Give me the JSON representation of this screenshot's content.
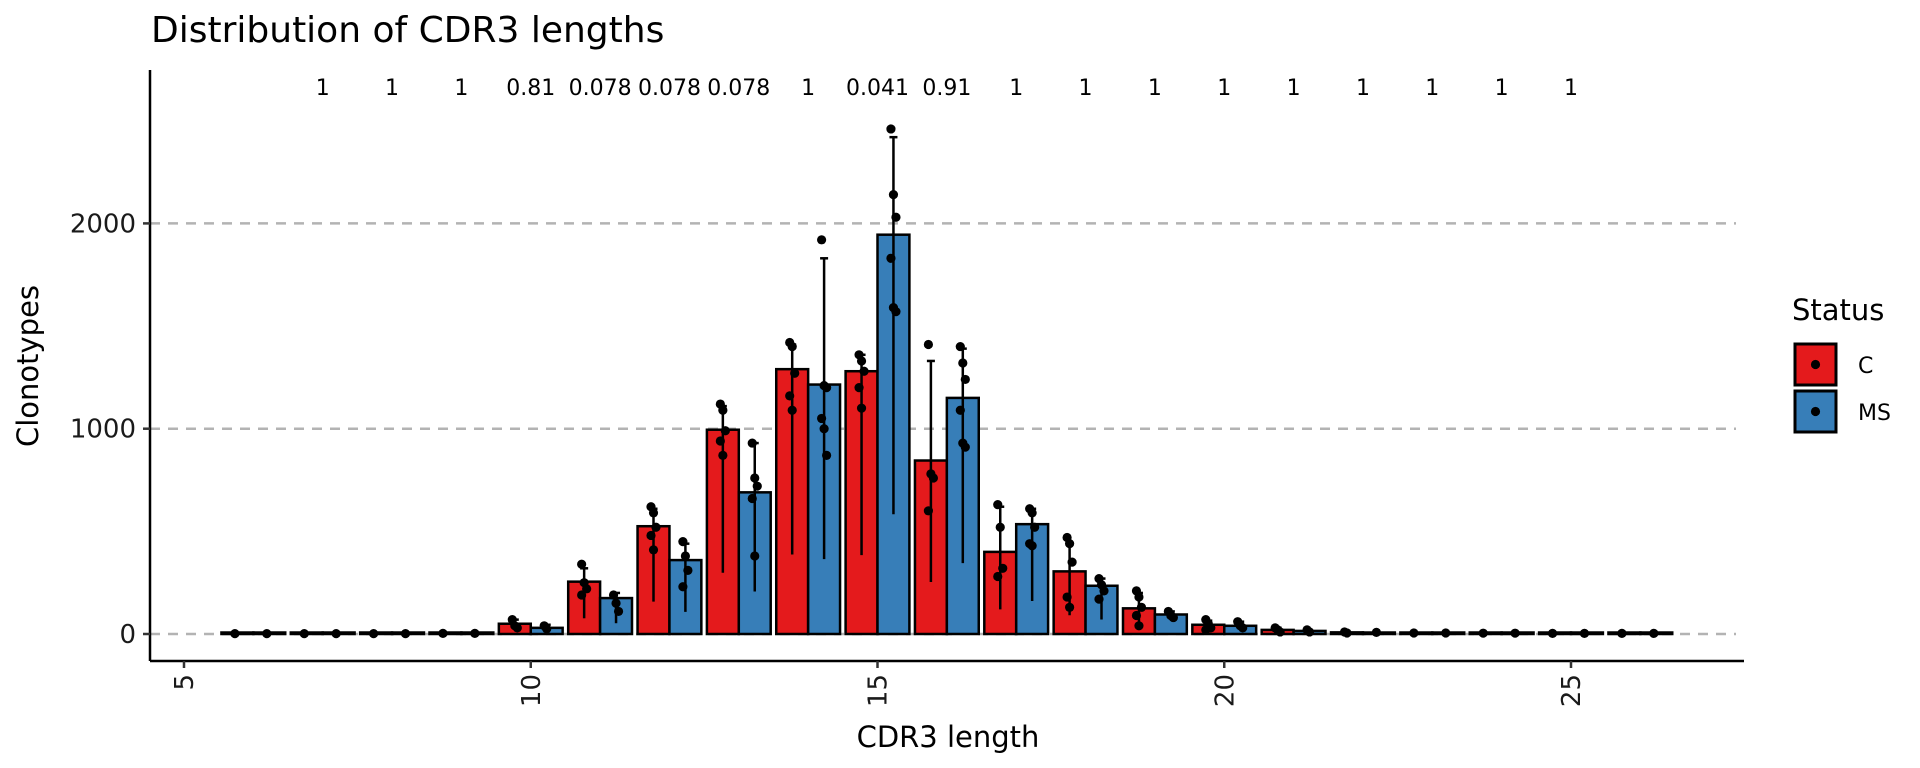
{
  "chart_data": {
    "type": "bar",
    "title": "Distribution of CDR3 lengths",
    "xlabel": "CDR3 length",
    "ylabel": "Clonotypes",
    "xlim": [
      4.5,
      27.5
    ],
    "ylim": [
      -130,
      2660
    ],
    "x_ticks": [
      5,
      10,
      15,
      20,
      25
    ],
    "y_ticks": [
      0,
      1000,
      2000
    ],
    "grid": "horizontal dashed at y ticks",
    "legend": {
      "title": "Status",
      "position": "right",
      "entries": [
        {
          "name": "C",
          "color": "#E41A1C"
        },
        {
          "name": "MS",
          "color": "#377EB8"
        }
      ]
    },
    "categories": [
      6,
      7,
      8,
      9,
      10,
      11,
      12,
      13,
      14,
      15,
      16,
      17,
      18,
      19,
      20,
      21,
      22,
      23,
      24,
      25,
      26
    ],
    "series": [
      {
        "name": "C",
        "color": "#E41A1C",
        "values": [
          2,
          2,
          2,
          3,
          50,
          255,
          525,
          995,
          1290,
          1280,
          845,
          400,
          305,
          125,
          45,
          20,
          8,
          5,
          4,
          3,
          3
        ],
        "error_upper": [
          2,
          2,
          2,
          3,
          70,
          320,
          610,
          1110,
          1410,
          1360,
          1330,
          620,
          440,
          200,
          65,
          30,
          12,
          6,
          5,
          4,
          3
        ],
        "points": [
          [
            2
          ],
          [
            2
          ],
          [
            2
          ],
          [
            3
          ],
          [
            70,
            40,
            30
          ],
          [
            340,
            250,
            220,
            190
          ],
          [
            620,
            590,
            520,
            480,
            410
          ],
          [
            1120,
            1090,
            990,
            940,
            870
          ],
          [
            1420,
            1400,
            1270,
            1160,
            1090
          ],
          [
            1360,
            1330,
            1280,
            1200,
            1100
          ],
          [
            1410,
            780,
            760,
            600
          ],
          [
            630,
            520,
            320,
            280
          ],
          [
            470,
            440,
            350,
            180,
            130
          ],
          [
            210,
            180,
            130,
            90,
            40
          ],
          [
            70,
            50,
            30,
            20
          ],
          [
            30,
            20,
            10
          ],
          [
            10,
            5
          ],
          [
            5
          ],
          [
            4
          ],
          [
            3
          ],
          [
            3
          ]
        ]
      },
      {
        "name": "MS",
        "color": "#377EB8",
        "values": [
          2,
          2,
          2,
          3,
          30,
          175,
          360,
          690,
          1215,
          1945,
          1150,
          535,
          235,
          95,
          40,
          15,
          6,
          4,
          3,
          3,
          3
        ],
        "error_upper": [
          2,
          2,
          2,
          3,
          45,
          200,
          440,
          930,
          1830,
          2420,
          1390,
          610,
          270,
          110,
          60,
          20,
          8,
          5,
          4,
          3,
          3
        ],
        "points": [
          [
            2
          ],
          [
            2
          ],
          [
            2
          ],
          [
            3
          ],
          [
            40,
            25
          ],
          [
            190,
            150,
            110
          ],
          [
            450,
            380,
            310,
            230
          ],
          [
            930,
            760,
            720,
            660,
            380
          ],
          [
            1920,
            1210,
            1200,
            1050,
            1000,
            870
          ],
          [
            2460,
            2140,
            2030,
            1830,
            1590,
            1570
          ],
          [
            1400,
            1320,
            1240,
            1090,
            930,
            910
          ],
          [
            610,
            590,
            520,
            440,
            430
          ],
          [
            270,
            240,
            210,
            170
          ],
          [
            110,
            90,
            80
          ],
          [
            60,
            40,
            30
          ],
          [
            20,
            10
          ],
          [
            8
          ],
          [
            5
          ],
          [
            4
          ],
          [
            3
          ],
          [
            3
          ]
        ]
      }
    ],
    "annotations": {
      "label": "p-values above each length",
      "x": [
        7,
        8,
        9,
        10,
        11,
        12,
        13,
        14,
        15,
        16,
        17,
        18,
        19,
        20,
        21,
        22,
        23,
        24,
        25
      ],
      "values": [
        "1",
        "1",
        "1",
        "0.81",
        "0.078",
        "0.078",
        "0.078",
        "1",
        "0.041",
        "0.91",
        "1",
        "1",
        "1",
        "1",
        "1",
        "1",
        "1",
        "1",
        "1"
      ]
    }
  }
}
